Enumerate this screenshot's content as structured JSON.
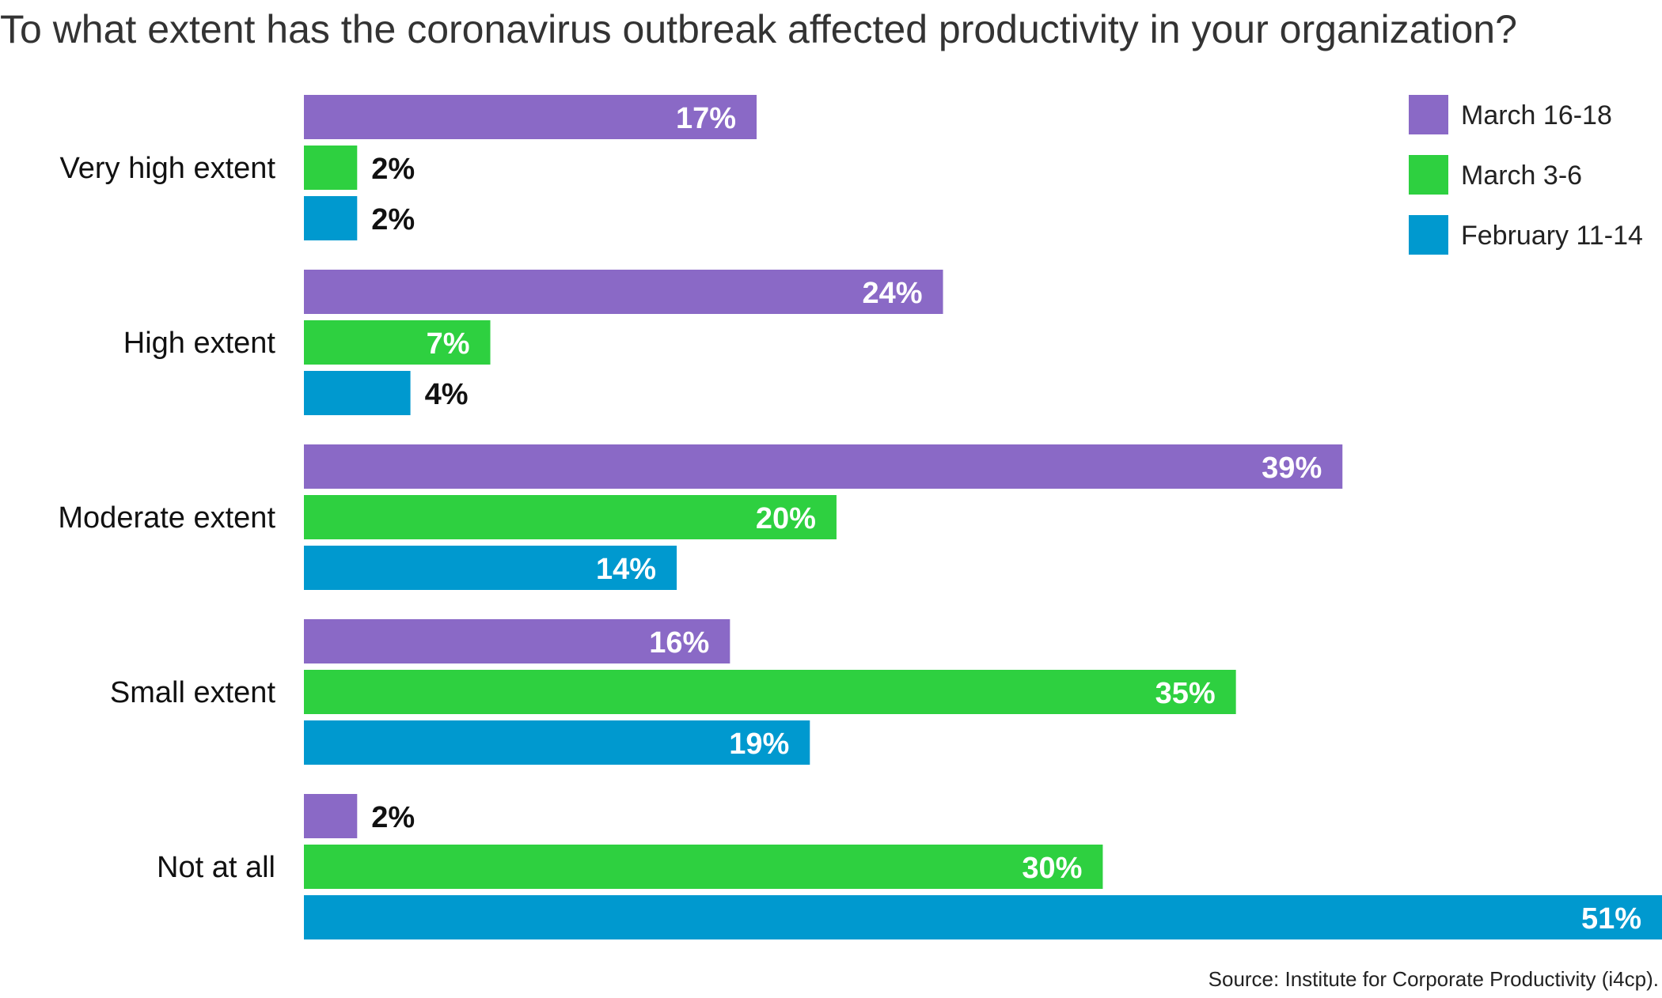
{
  "chart_data": {
    "type": "bar",
    "orientation": "horizontal",
    "title": "To what extent has the coronavirus outbreak affected productivity in your organization?",
    "source": "Source: Institute for Corporate Productivity (i4cp).",
    "categories": [
      "Very high extent",
      "High extent",
      "Moderate extent",
      "Small extent",
      "Not at all"
    ],
    "series": [
      {
        "name": "March 16-18",
        "color": "#8a69c6",
        "values": [
          17,
          24,
          39,
          16,
          2
        ],
        "labels": [
          "17%",
          "24%",
          "39%",
          "16%",
          "2%"
        ]
      },
      {
        "name": "March 3-6",
        "color": "#2ed040",
        "values": [
          2,
          7,
          20,
          35,
          30
        ],
        "labels": [
          "2%",
          "7%",
          "20%",
          "35%",
          "30%"
        ]
      },
      {
        "name": "February 11-14",
        "color": "#0099cf",
        "values": [
          2,
          4,
          14,
          19,
          51
        ],
        "labels": [
          "2%",
          "4%",
          "14%",
          "19%",
          "51%"
        ]
      }
    ],
    "value_unit": "%",
    "xlim": [
      0,
      51
    ],
    "grid": false,
    "legend_position": "top-right"
  }
}
